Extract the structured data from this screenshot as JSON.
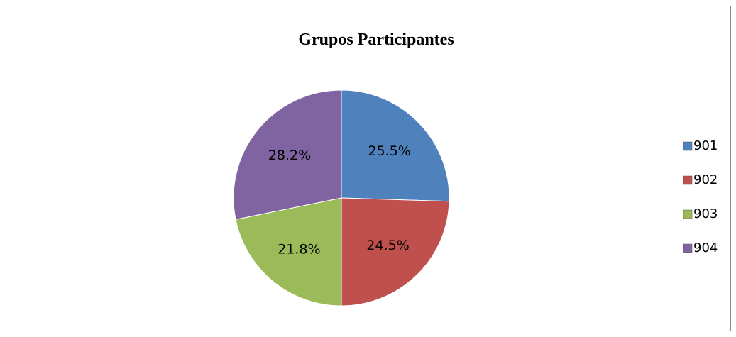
{
  "chart_data": {
    "type": "pie",
    "title": "Grupos Participantes",
    "categories": [
      "901",
      "902",
      "903",
      "904"
    ],
    "values": [
      25.5,
      24.5,
      21.8,
      28.2
    ],
    "value_labels": [
      "25.5%",
      "24.5%",
      "21.8%",
      "28.2%"
    ],
    "colors": [
      "#4f81bd",
      "#c0504d",
      "#9bbb59",
      "#8064a2"
    ],
    "legend": "right"
  }
}
